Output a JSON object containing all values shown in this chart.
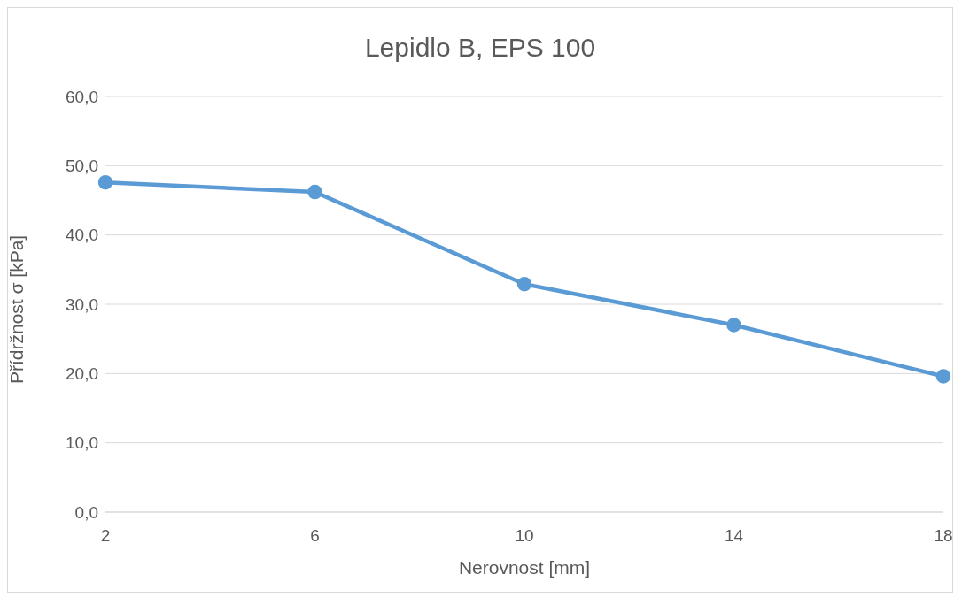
{
  "chart_data": {
    "type": "line",
    "title": "Lepidlo B, EPS 100",
    "xlabel": "Nerovnost [mm]",
    "ylabel": "Přídržnost σ [kPa]",
    "categories": [
      "2",
      "6",
      "10",
      "14",
      "18"
    ],
    "series": [
      {
        "color": "#5b9bd5",
        "values": [
          47.6,
          46.2,
          32.9,
          27.0,
          19.6
        ]
      }
    ],
    "ylim": [
      0,
      60
    ],
    "yticks": [
      {
        "value": 0,
        "label": "0,0"
      },
      {
        "value": 10,
        "label": "10,0"
      },
      {
        "value": 20,
        "label": "20,0"
      },
      {
        "value": 30,
        "label": "30,0"
      },
      {
        "value": 40,
        "label": "40,0"
      },
      {
        "value": 50,
        "label": "50,0"
      },
      {
        "value": 60,
        "label": "60,0"
      }
    ],
    "grid": "y",
    "marker": "circle",
    "line_style": "solid",
    "legend": false
  }
}
